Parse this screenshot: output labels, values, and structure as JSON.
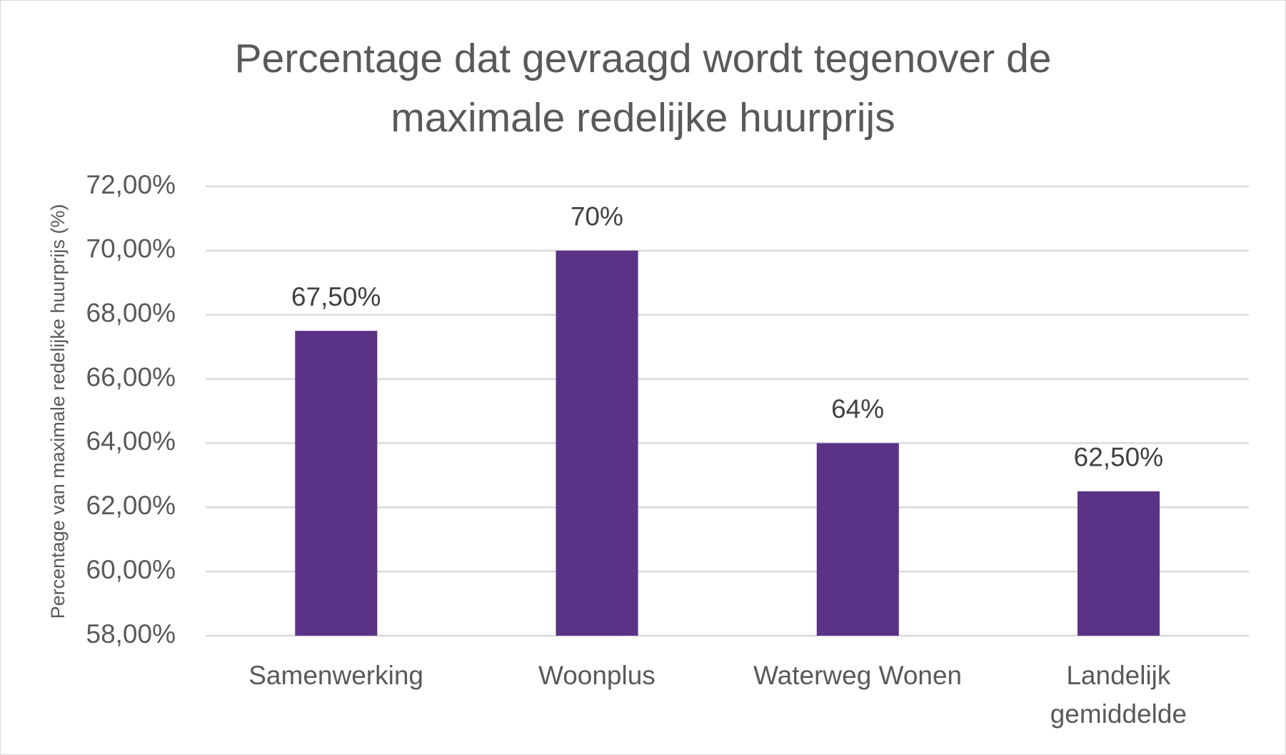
{
  "chart_data": {
    "type": "bar",
    "title": "Percentage dat gevraagd wordt tegenover de maximale redelijke huurprijs",
    "y_axis_label": "Percentage van maximale redelijke huurprijs (%)",
    "categories": [
      "Samenwerking",
      "Woonplus",
      "Waterweg Wonen",
      "Landelijk gemiddelde"
    ],
    "values": [
      67.5,
      70,
      64,
      62.5
    ],
    "value_labels": [
      "67,50%",
      "70%",
      "64%",
      "62,50%"
    ],
    "color": "#5a3286",
    "ylim": [
      58,
      72
    ],
    "yticks": [
      {
        "value": 58,
        "label": "58,00%"
      },
      {
        "value": 60,
        "label": "60,00%"
      },
      {
        "value": 62,
        "label": "62,00%"
      },
      {
        "value": 64,
        "label": "64,00%"
      },
      {
        "value": 66,
        "label": "66,00%"
      },
      {
        "value": 68,
        "label": "68,00%"
      },
      {
        "value": 70,
        "label": "70,00%"
      },
      {
        "value": 72,
        "label": "72,00%"
      }
    ],
    "grid": true
  }
}
